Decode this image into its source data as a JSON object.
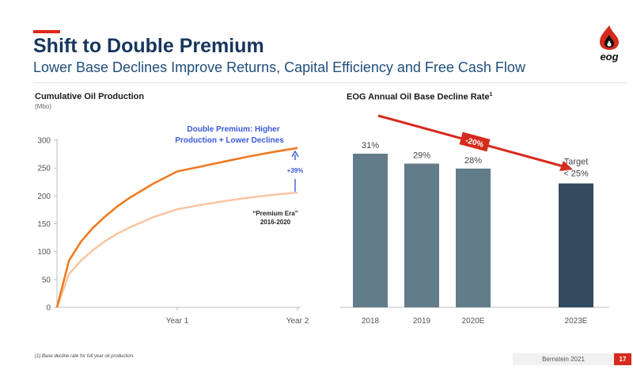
{
  "header": {
    "title": "Shift to Double Premium",
    "subtitle": "Lower Base Declines Improve Returns, Capital Efficiency and Free Cash Flow",
    "logo_text": "eog"
  },
  "chart_data": [
    {
      "type": "line",
      "title": "Cumulative Oil Production",
      "ylabel": "(Mbo)",
      "xlabel": "",
      "ylim": [
        0,
        300
      ],
      "yticks": [
        "0",
        "50",
        "100",
        "150",
        "200",
        "250",
        "300"
      ],
      "xticks": [
        "Year 1",
        "Year 2"
      ],
      "x_range": [
        0,
        2
      ],
      "series": [
        {
          "color": "#ef7b22",
          "points": [
            [
              0,
              0
            ],
            [
              0.1,
              84
            ],
            [
              0.2,
              118
            ],
            [
              0.3,
              143
            ],
            [
              0.4,
              163
            ],
            [
              0.5,
              181
            ],
            [
              0.6,
              196
            ],
            [
              0.8,
              222
            ],
            [
              1.0,
              244
            ],
            [
              1.2,
              253
            ],
            [
              1.4,
              262
            ],
            [
              1.6,
              271
            ],
            [
              1.8,
              279
            ],
            [
              2.0,
              286
            ]
          ]
        },
        {
          "color": "#f8c49e",
          "points": [
            [
              0,
              0
            ],
            [
              0.1,
              60
            ],
            [
              0.2,
              84
            ],
            [
              0.3,
              103
            ],
            [
              0.4,
              119
            ],
            [
              0.5,
              132
            ],
            [
              0.6,
              143
            ],
            [
              0.8,
              162
            ],
            [
              1.0,
              176
            ],
            [
              1.2,
              184
            ],
            [
              1.4,
              191
            ],
            [
              1.6,
              197
            ],
            [
              1.8,
              202
            ],
            [
              2.0,
              206
            ]
          ]
        }
      ],
      "annotations": {
        "double_premium_line1": "Double Premium: Higher",
        "double_premium_line2": "Production + Lower Declines",
        "increase": "+39%",
        "premium_era_line1": "“Premium Era”",
        "premium_era_line2": "2016-2020"
      },
      "colors": {
        "annotation_blue": "#3c5bd7"
      }
    },
    {
      "type": "bar",
      "title": "EOG Annual Oil Base Decline Rate",
      "title_superscript": "1",
      "categories": [
        "2018",
        "2019",
        "2020E",
        "2023E"
      ],
      "values": [
        31,
        29,
        28,
        25
      ],
      "labels": [
        "31%",
        "29%",
        "28%",
        ""
      ],
      "target_label_line1": "Target",
      "target_label_line2": "< 25%",
      "ylim": [
        0,
        35
      ],
      "colors": [
        "#627d89",
        "#627d89",
        "#627d89",
        "#344a5e"
      ],
      "trend_label": "-20%",
      "trend_color": "#d52b1e"
    }
  ],
  "footer": {
    "footnote": "(1)     Base decline rate for full year oil production.",
    "source": "Bernstein 2021",
    "page": "17"
  }
}
